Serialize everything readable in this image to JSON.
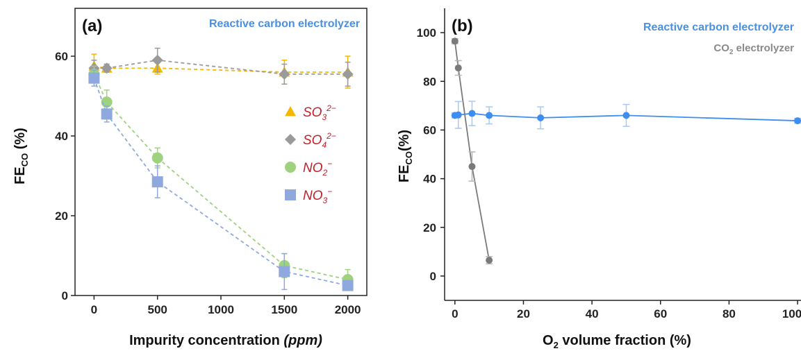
{
  "chart_data": [
    {
      "type": "scatter",
      "panel_label": "(a)",
      "title": "Reactive carbon electrolyzer",
      "xlabel": "Impurity concentration",
      "xlabel_unit": "(ppm)",
      "ylabel": "FE",
      "ylabel_sub": "CO",
      "ylabel_suffix": " (%)",
      "xlim": [
        -150,
        2150
      ],
      "ylim": [
        0,
        72
      ],
      "xticks": [
        0,
        500,
        1000,
        1500,
        2000
      ],
      "yticks": [
        0,
        20,
        40,
        60
      ],
      "xtick_labels": [
        "0",
        "500",
        "1000",
        "1500",
        "2000"
      ],
      "ytick_labels": [
        "0",
        "20",
        "40",
        "60"
      ],
      "grid": false,
      "legend_position": "right-center",
      "series": [
        {
          "name": "SO",
          "sub": "3",
          "sup": "2−",
          "marker": "triangle",
          "color": "#f5b800",
          "x": [
            0,
            100,
            500,
            1500,
            2000
          ],
          "y": [
            57.5,
            57,
            57,
            56,
            56
          ],
          "err": [
            3,
            1,
            1.5,
            3,
            4
          ]
        },
        {
          "name": "SO",
          "sub": "4",
          "sup": "2−",
          "marker": "diamond",
          "color": "#9a9a9a",
          "x": [
            0,
            100,
            500,
            1500,
            2000
          ],
          "y": [
            57,
            57,
            59,
            55.5,
            55.5
          ],
          "err": [
            2,
            1,
            3,
            2.5,
            3
          ]
        },
        {
          "name": "NO",
          "sub": "2",
          "sup": "−",
          "marker": "circle",
          "color": "#9fd27f",
          "x": [
            0,
            100,
            500,
            1500,
            2000
          ],
          "y": [
            55.5,
            48.5,
            34.5,
            7.5,
            4
          ],
          "err": [
            2,
            3,
            2.5,
            3,
            2.5
          ]
        },
        {
          "name": "NO",
          "sub": "3",
          "sup": "−",
          "marker": "square",
          "color": "#8fa8de",
          "x": [
            0,
            100,
            500,
            1500,
            2000
          ],
          "y": [
            54.5,
            45.5,
            28.5,
            6,
            2.5
          ],
          "err": [
            2,
            2,
            4,
            4.5,
            1
          ]
        }
      ]
    },
    {
      "type": "line",
      "panel_label": "(b)",
      "xlabel": "O",
      "xlabel_sub": "2",
      "xlabel_suffix": " volume fraction (%)",
      "ylabel": "FE",
      "ylabel_sub": "CO",
      "ylabel_suffix": "(%)",
      "xlim": [
        -3,
        101
      ],
      "ylim": [
        -10,
        110
      ],
      "xticks": [
        0,
        20,
        40,
        60,
        80,
        100
      ],
      "yticks": [
        0,
        20,
        40,
        60,
        80,
        100
      ],
      "xtick_labels": [
        "0",
        "20",
        "40",
        "60",
        "80",
        "100"
      ],
      "ytick_labels": [
        "0",
        "20",
        "40",
        "60",
        "80",
        "100"
      ],
      "grid": false,
      "legend_position": "top-right",
      "series": [
        {
          "name": "Reactive carbon electrolyzer",
          "color": "#3d8ef0",
          "x": [
            0,
            1,
            5,
            10,
            25,
            50,
            100
          ],
          "y": [
            66,
            66.2,
            66.8,
            66,
            65,
            66,
            63.8
          ],
          "err": [
            1,
            5.5,
            5,
            3.5,
            4.5,
            4.5,
            1
          ]
        },
        {
          "name": "CO",
          "name_sub": "2",
          "name_suffix": " electrolyzer",
          "color": "#7a7a7a",
          "x": [
            0,
            1,
            5,
            10
          ],
          "y": [
            96.5,
            85.5,
            45,
            6.5
          ],
          "err": [
            1,
            3,
            6,
            1.5
          ]
        }
      ]
    }
  ]
}
